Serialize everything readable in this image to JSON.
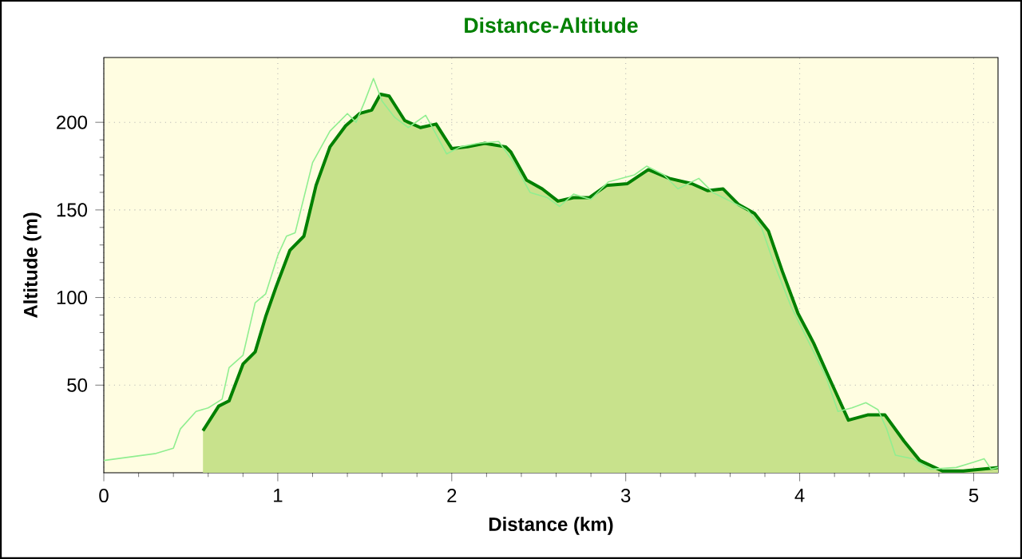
{
  "chart_data": {
    "type": "line",
    "title": "Distance-Altitude",
    "xlabel": "Distance (km)",
    "ylabel": "Altitude (m)",
    "xlim": [
      0,
      5.14
    ],
    "ylim": [
      0,
      237
    ],
    "xticks": [
      0,
      1,
      2,
      3,
      4,
      5
    ],
    "yticks": [
      50,
      100,
      150,
      200
    ],
    "grid": true,
    "marker": "none",
    "line_style": "solid",
    "series": [
      {
        "type": "area",
        "color": "#008000",
        "x": [
          0.57,
          0.66,
          0.72,
          0.8,
          0.87,
          0.93,
          0.99,
          1.07,
          1.15,
          1.22,
          1.3,
          1.39,
          1.47,
          1.54,
          1.59,
          1.64,
          1.73,
          1.82,
          1.91,
          2.0,
          2.09,
          2.19,
          2.31,
          2.34,
          2.43,
          2.52,
          2.61,
          2.7,
          2.79,
          2.89,
          3.01,
          3.13,
          3.25,
          3.38,
          3.47,
          3.56,
          3.65,
          3.74,
          3.82,
          3.9,
          3.99,
          4.08,
          4.17,
          4.28,
          4.39,
          4.49,
          4.6,
          4.69,
          4.82,
          4.94,
          5.14
        ],
        "values": [
          24,
          38,
          41,
          62,
          69,
          89,
          106,
          127,
          135,
          164,
          186,
          198,
          205,
          207,
          216,
          215,
          201,
          197,
          199,
          185,
          186,
          188,
          186,
          183,
          167,
          162,
          155,
          157,
          157,
          164,
          165,
          173,
          168,
          165,
          161,
          162,
          153,
          148,
          138,
          115,
          91,
          74,
          54,
          30,
          33,
          33,
          18,
          7,
          1,
          1,
          3
        ]
      },
      {
        "color": "#90ee90",
        "x": [
          0,
          0.3,
          0.4,
          0.44,
          0.53,
          0.6,
          0.68,
          0.72,
          0.8,
          0.87,
          0.93,
          1.0,
          1.05,
          1.1,
          1.2,
          1.3,
          1.4,
          1.45,
          1.5,
          1.55,
          1.6,
          1.67,
          1.75,
          1.85,
          1.9,
          1.97,
          2.05,
          2.15,
          2.27,
          2.35,
          2.45,
          2.55,
          2.62,
          2.7,
          2.8,
          2.9,
          3.05,
          3.12,
          3.22,
          3.3,
          3.42,
          3.5,
          3.6,
          3.7,
          3.78,
          3.85,
          3.95,
          4.05,
          4.15,
          4.22,
          4.3,
          4.38,
          4.45,
          4.5,
          4.55,
          4.65,
          4.75,
          4.9,
          5.0,
          5.06,
          5.1,
          5.14
        ],
        "values": [
          7,
          11,
          14,
          25,
          35,
          37,
          42,
          60,
          67,
          97,
          102,
          124,
          135,
          137,
          177,
          195,
          205,
          200,
          212,
          225,
          212,
          203,
          197,
          204,
          195,
          182,
          186,
          188,
          189,
          178,
          160,
          157,
          152,
          159,
          156,
          166,
          170,
          175,
          170,
          162,
          168,
          160,
          155,
          150,
          140,
          120,
          95,
          75,
          55,
          35,
          37,
          40,
          36,
          25,
          10,
          8,
          2,
          3,
          6,
          8,
          2,
          3
        ]
      }
    ]
  }
}
